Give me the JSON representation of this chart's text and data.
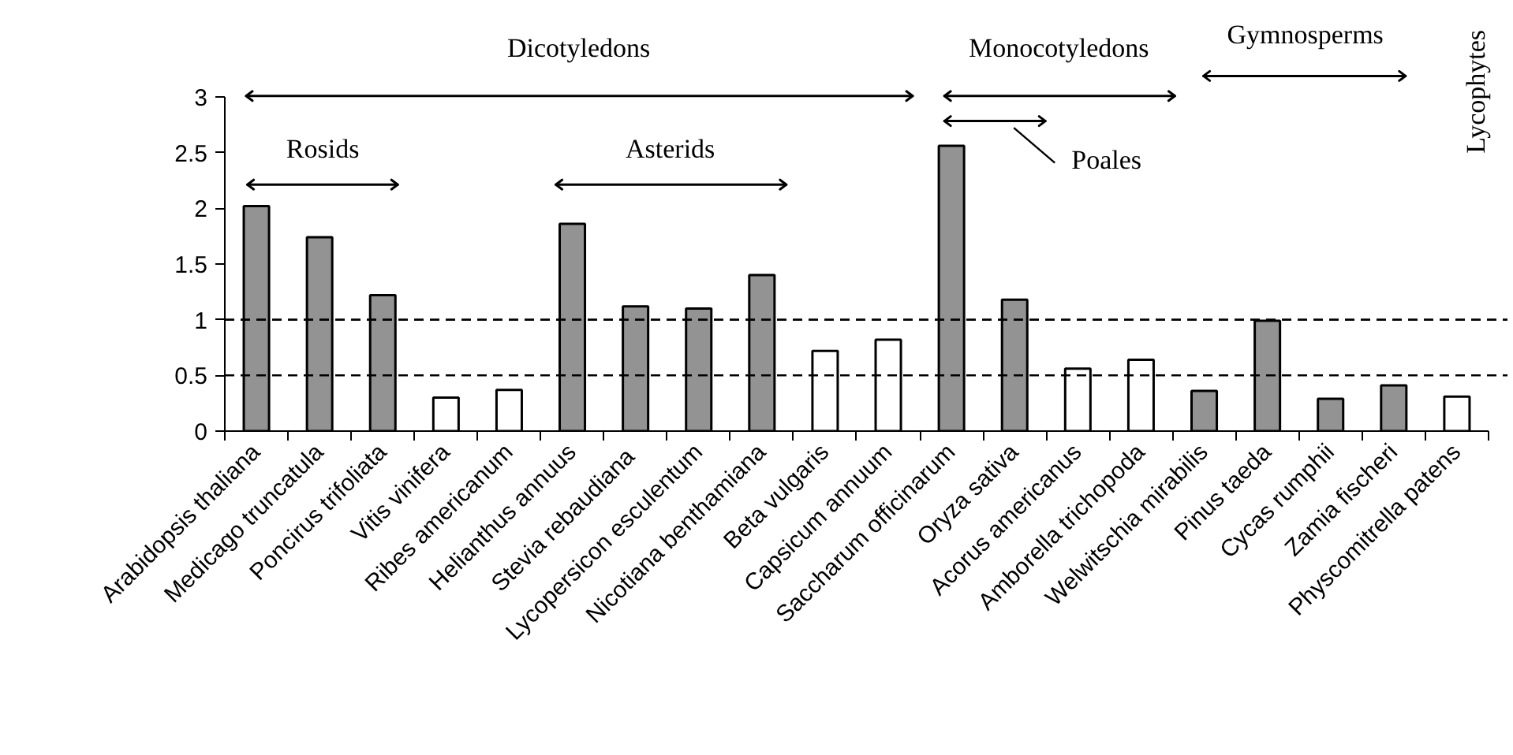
{
  "chart_data": {
    "type": "bar",
    "categories": [
      "Arabidopsis thaliana",
      "Medicago truncatula",
      "Poncirus trifoliata",
      "Vitis vinifera",
      "Ribes americanum",
      "Helianthus annuus",
      "Stevia  rebaudiana",
      "Lycopersicon esculentum",
      "Nicotiana benthamiana",
      "Beta vulgaris",
      "Capsicum annuum",
      "Saccharum officinarum",
      "Oryza sativa",
      "Acorus americanus",
      "Amborella trichopoda",
      "Welwitschia mirabilis",
      "Pinus taeda",
      "Cycas rumphii",
      "Zamia fischeri",
      "Physcomitrella patens"
    ],
    "values": [
      2.02,
      1.74,
      1.22,
      0.3,
      0.37,
      1.86,
      1.12,
      1.1,
      1.4,
      0.72,
      0.82,
      2.56,
      1.18,
      0.56,
      0.64,
      0.36,
      0.99,
      0.29,
      0.41,
      0.31
    ],
    "colors": [
      "#939393",
      "#939393",
      "#939393",
      "#ffffff",
      "#ffffff",
      "#939393",
      "#939393",
      "#939393",
      "#939393",
      "#ffffff",
      "#ffffff",
      "#939393",
      "#939393",
      "#ffffff",
      "#ffffff",
      "#939393",
      "#939393",
      "#939393",
      "#939393",
      "#ffffff"
    ],
    "ylim": [
      0,
      3
    ],
    "yticks": [
      0,
      0.5,
      1,
      1.5,
      2,
      2.5,
      3
    ],
    "grid": false,
    "ref_lines": [
      {
        "axis": "y",
        "value": 0.5,
        "color": "#000000",
        "line_style": "dashed"
      },
      {
        "axis": "y",
        "value": 1,
        "color": "#000000",
        "line_style": "dashed"
      }
    ],
    "annotations": [
      "Dicotyledons",
      "Rosids",
      "Asterids",
      "Monocotyledons",
      "Poales",
      "Gymnosperms",
      "Lycophytes"
    ]
  }
}
